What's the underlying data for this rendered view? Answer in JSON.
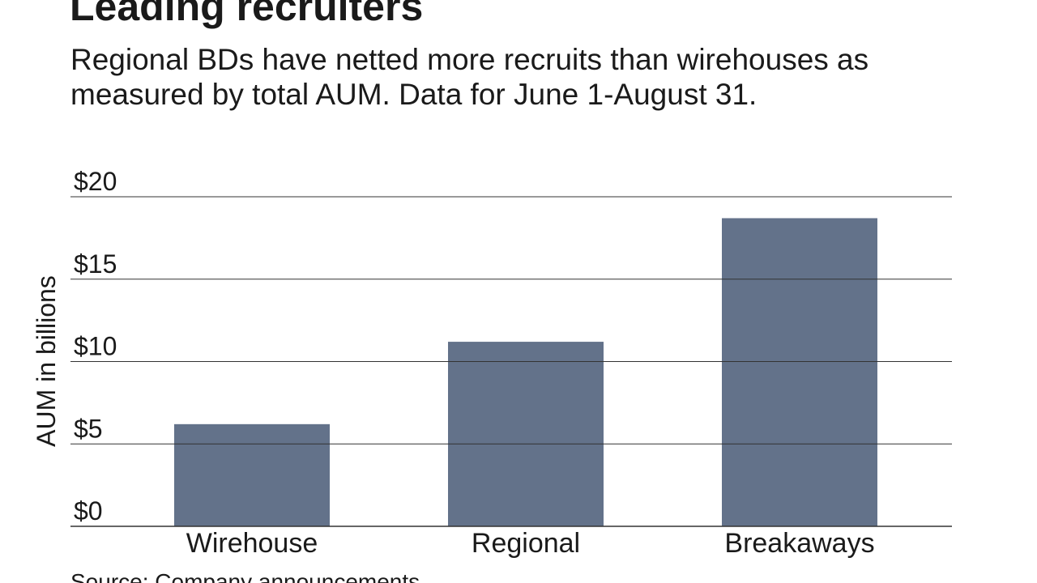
{
  "header": {
    "title": "Leading recruiters",
    "subtitle": "Regional BDs have netted more recruits than wirehouses as measured by total AUM. Data for June 1-August 31."
  },
  "chart_data": {
    "type": "bar",
    "categories": [
      "Wirehouse",
      "Regional",
      "Breakaways"
    ],
    "values": [
      6.2,
      11.2,
      18.7
    ],
    "ylabel": "AUM in billions",
    "ylim": [
      0,
      20
    ],
    "yticks": [
      0,
      5,
      10,
      15,
      20
    ],
    "ytick_labels": [
      "$0",
      "$5",
      "$10",
      "$15",
      "$20"
    ],
    "bar_color": "#63728a",
    "grid": true,
    "legend": "none"
  },
  "footer": {
    "source": "Source: Company announcements"
  }
}
